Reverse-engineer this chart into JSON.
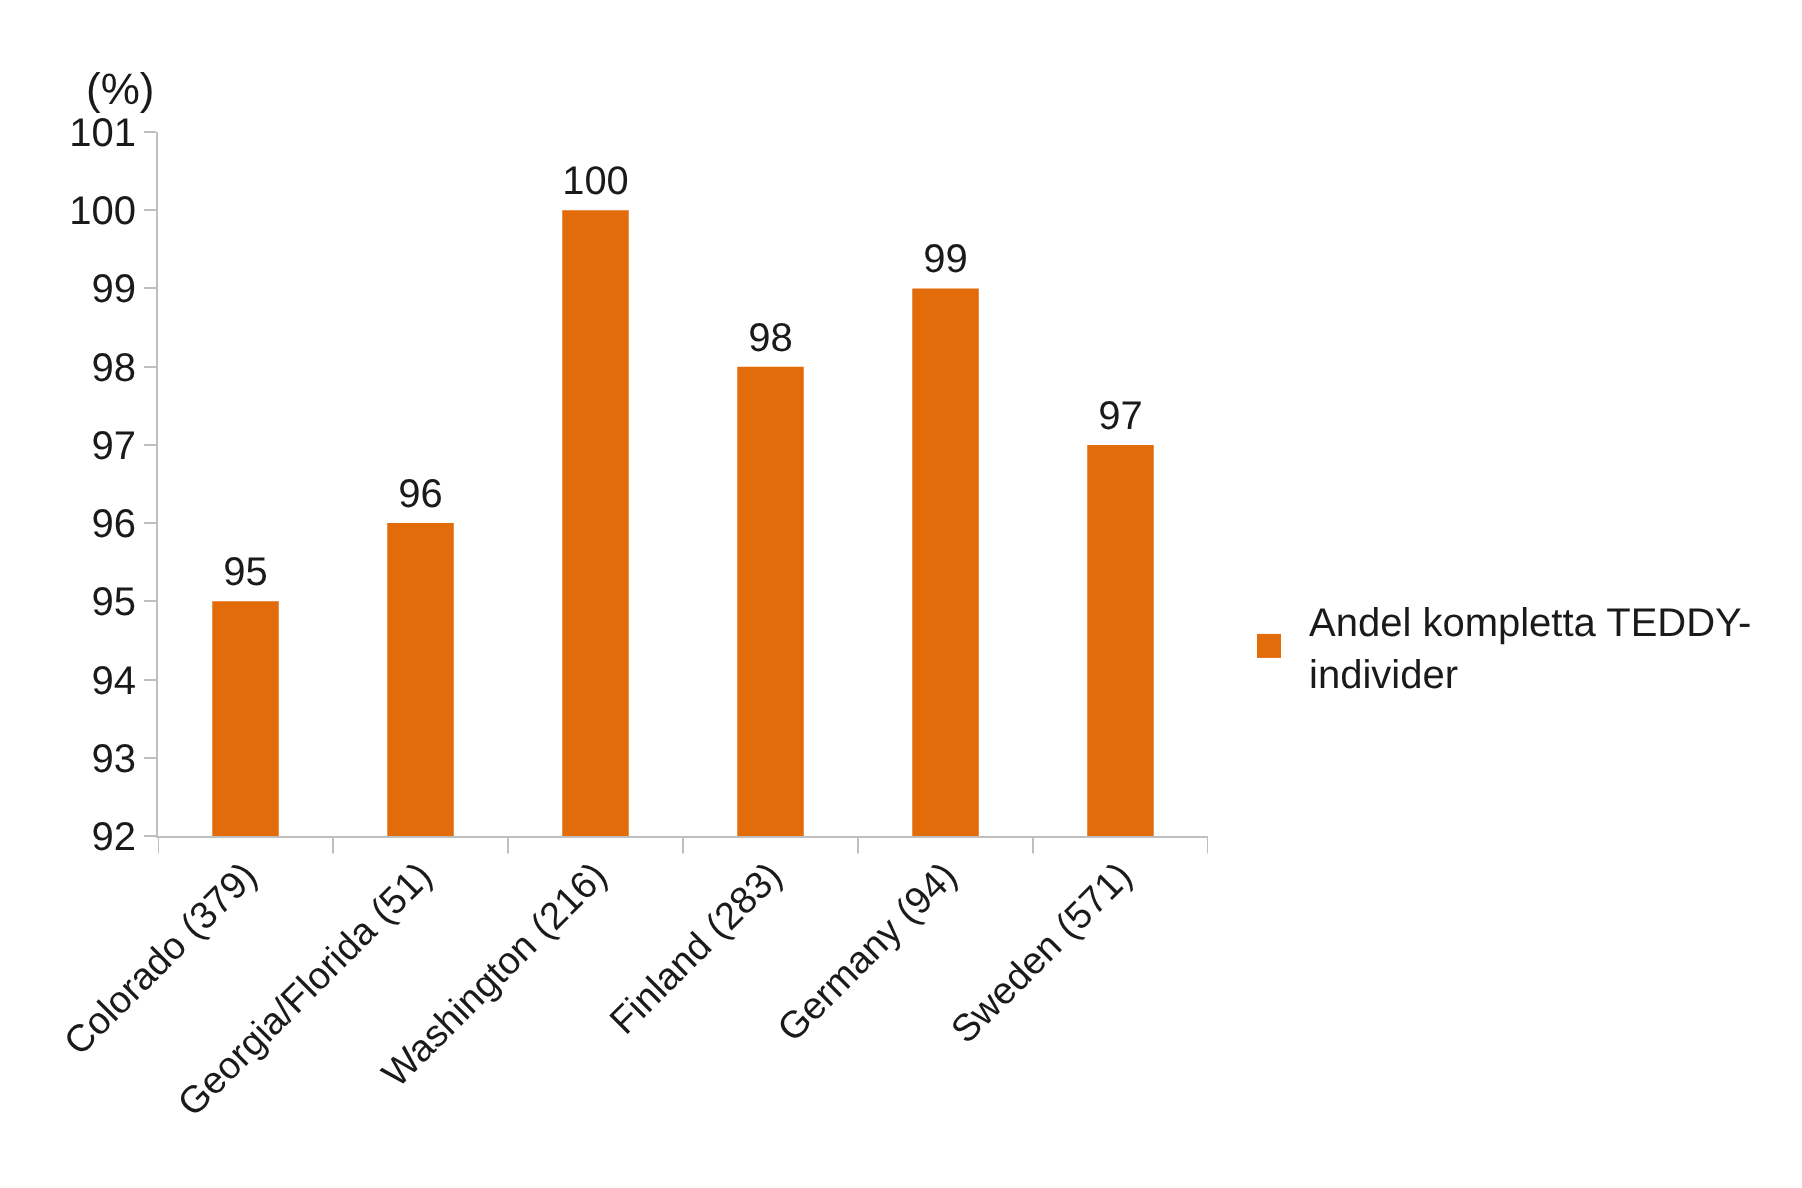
{
  "chart_data": {
    "type": "bar",
    "ylabel": "(%)",
    "categories": [
      "Colorado (379)",
      "Georgia/Florida (51)",
      "Washington (216)",
      "Finland (283)",
      "Germany (94)",
      "Sweden (571)"
    ],
    "series": [
      {
        "name": "Andel kompletta TEDDY-individer",
        "color": "#e36c0a",
        "values": [
          95,
          96,
          100,
          98,
          99,
          97
        ]
      }
    ],
    "ylim": [
      92,
      101
    ],
    "yticks": [
      92,
      93,
      94,
      95,
      96,
      97,
      98,
      99,
      100,
      101
    ],
    "data_labels": true,
    "legend": "right"
  }
}
